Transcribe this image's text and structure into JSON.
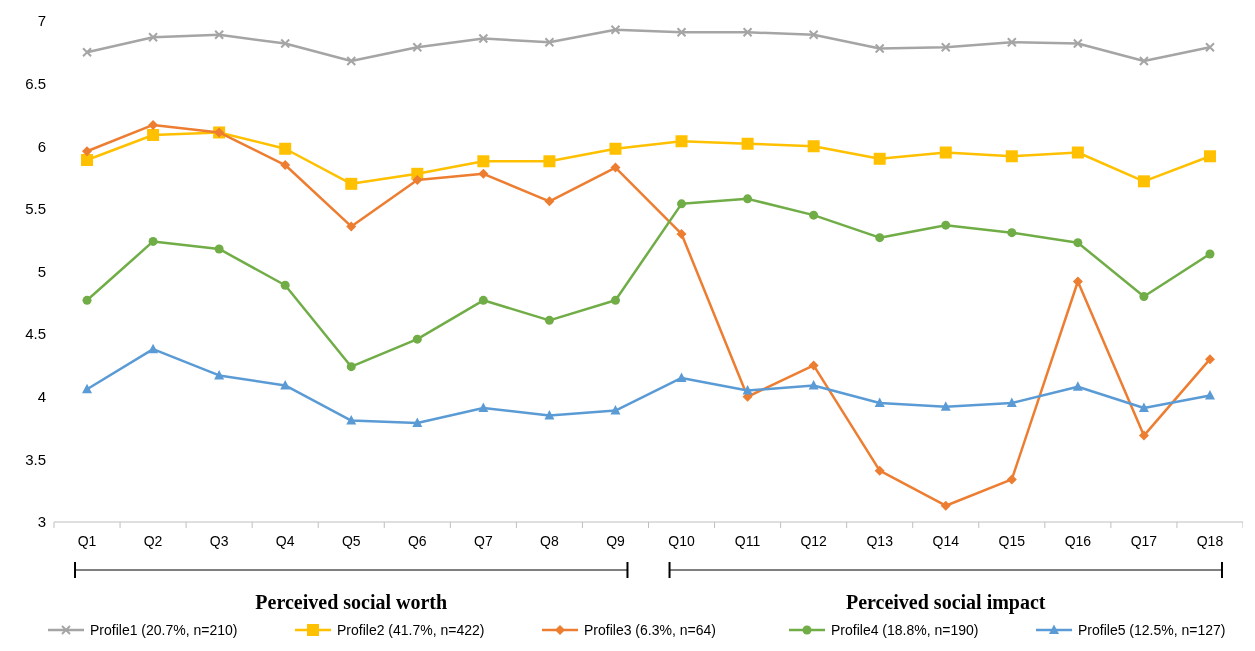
{
  "chart_data": {
    "type": "line",
    "categories": [
      "Q1",
      "Q2",
      "Q3",
      "Q4",
      "Q5",
      "Q6",
      "Q7",
      "Q8",
      "Q9",
      "Q10",
      "Q11",
      "Q12",
      "Q13",
      "Q14",
      "Q15",
      "Q16",
      "Q17",
      "Q18"
    ],
    "ylim": [
      3,
      7
    ],
    "yticks": [
      3,
      3.5,
      4,
      4.5,
      5,
      5.5,
      6,
      6.5,
      7
    ],
    "grid": false,
    "legend": "bottom",
    "line_style": "solid",
    "annotations": [
      "Perceived social worth",
      "Perceived social impact"
    ],
    "series": [
      {
        "name": "Profile1 (20.7%, n=210)",
        "color": "#a5a5a5",
        "marker": "cross",
        "values": [
          6.75,
          6.87,
          6.89,
          6.82,
          6.68,
          6.79,
          6.86,
          6.83,
          6.93,
          6.91,
          6.91,
          6.89,
          6.78,
          6.79,
          6.83,
          6.82,
          6.68,
          6.79
        ]
      },
      {
        "name": "Profile2 (41.7%, n=422)",
        "color": "#ffc000",
        "marker": "square",
        "values": [
          5.89,
          6.09,
          6.11,
          5.98,
          5.7,
          5.78,
          5.88,
          5.88,
          5.98,
          6.04,
          6.02,
          6.0,
          5.9,
          5.95,
          5.92,
          5.95,
          5.72,
          5.92
        ]
      },
      {
        "name": "Profile3 (6.3%, n=64)",
        "color": "#ed7d31",
        "marker": "diamond",
        "values": [
          5.96,
          6.17,
          6.11,
          5.85,
          5.36,
          5.73,
          5.78,
          5.56,
          5.83,
          5.3,
          4.0,
          4.25,
          3.41,
          3.13,
          3.34,
          4.92,
          3.69,
          4.3
        ]
      },
      {
        "name": "Profile4 (18.8%, n=190)",
        "color": "#70ad47",
        "marker": "circle",
        "values": [
          4.77,
          5.24,
          5.18,
          4.89,
          4.24,
          4.46,
          4.77,
          4.61,
          4.77,
          5.54,
          5.58,
          5.45,
          5.27,
          5.37,
          5.31,
          5.23,
          4.8,
          5.14
        ]
      },
      {
        "name": "Profile5 (12.5%, n=127)",
        "color": "#5b9bd5",
        "marker": "triangle",
        "values": [
          4.06,
          4.38,
          4.17,
          4.09,
          3.81,
          3.79,
          3.91,
          3.85,
          3.89,
          4.15,
          4.05,
          4.09,
          3.95,
          3.92,
          3.95,
          4.08,
          3.91,
          4.01
        ]
      }
    ]
  }
}
